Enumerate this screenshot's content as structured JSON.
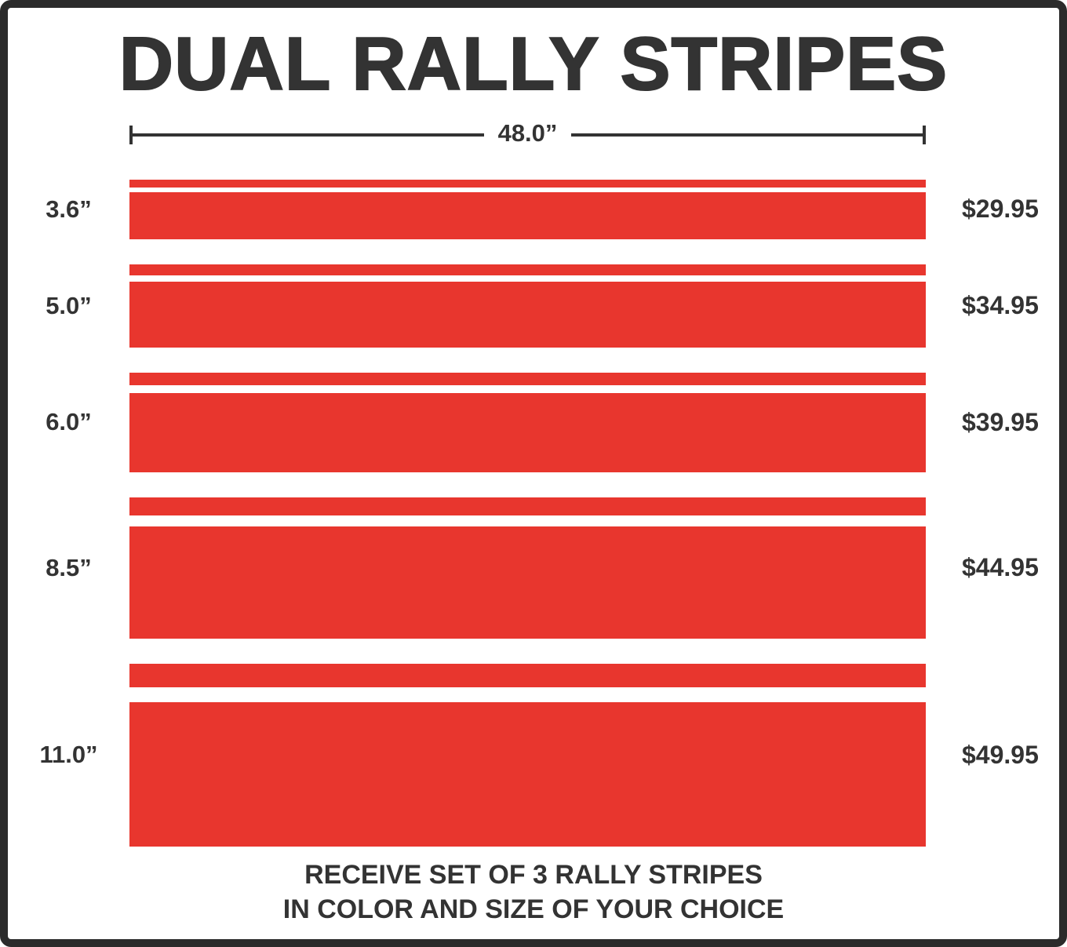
{
  "page": {
    "title": "DUAL RALLY STRIPES",
    "footer_line1": "RECEIVE SET OF 3 RALLY STRIPES",
    "footer_line2": "IN COLOR AND SIZE OF YOUR CHOICE"
  },
  "dimension": {
    "label": "48.0”",
    "inches": 48
  },
  "colors": {
    "stripe_red": "#e8362e",
    "text_dark": "#333333",
    "frame_dark": "#2b2b2b"
  },
  "rows": [
    {
      "size_label": "3.6”",
      "size_in": 3.6,
      "price": "$29.95"
    },
    {
      "size_label": "5.0”",
      "size_in": 5.0,
      "price": "$34.95"
    },
    {
      "size_label": "6.0”",
      "size_in": 6.0,
      "price": "$39.95"
    },
    {
      "size_label": "8.5”",
      "size_in": 8.5,
      "price": "$44.95"
    },
    {
      "size_label": "11.0”",
      "size_in": 11.0,
      "price": "$49.95"
    }
  ]
}
